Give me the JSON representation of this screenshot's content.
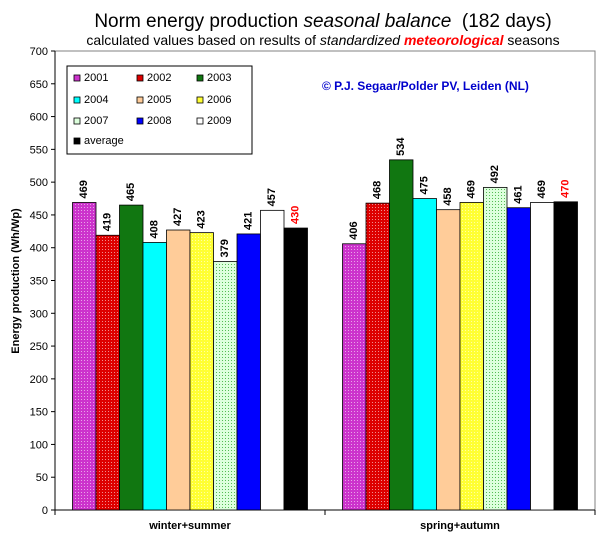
{
  "title": {
    "prefix": "Norm energy production ",
    "emph": "seasonal balance",
    "suffix": "  (182 days)"
  },
  "subtitle": {
    "part1": "calculated values based on results of ",
    "part2": "standardized",
    "part3": "meteorological",
    "part4": " seasons",
    "highlight_color": "#ff0000"
  },
  "copyright": "© P.J. Segaar/Polder PV, Leiden (NL)",
  "chart_data": {
    "type": "bar",
    "categories": [
      "winter+summer",
      "spring+autumn"
    ],
    "ylabel": "Energy production (Wh/Wp)",
    "xlabel": "",
    "ylim": [
      0,
      700
    ],
    "yticks": [
      0,
      50,
      100,
      150,
      200,
      250,
      300,
      350,
      400,
      450,
      500,
      550,
      600,
      650,
      700
    ],
    "grid": false,
    "legend_position": "top-left",
    "series": [
      {
        "name": "2001",
        "values": [
          469,
          406
        ],
        "color": "#cc33cc",
        "pattern": "dots"
      },
      {
        "name": "2002",
        "values": [
          419,
          468
        ],
        "color": "#dd0000",
        "pattern": "dots"
      },
      {
        "name": "2003",
        "values": [
          465,
          534
        ],
        "color": "#117711",
        "pattern": "solid"
      },
      {
        "name": "2004",
        "values": [
          408,
          475
        ],
        "color": "#00ffff",
        "pattern": "solid"
      },
      {
        "name": "2005",
        "values": [
          427,
          458
        ],
        "color": "#ffcc99",
        "pattern": "solid"
      },
      {
        "name": "2006",
        "values": [
          423,
          469
        ],
        "color": "#ffff33",
        "pattern": "dots"
      },
      {
        "name": "2007",
        "values": [
          379,
          492
        ],
        "color": "#ddffdd",
        "pattern": "dots-green"
      },
      {
        "name": "2008",
        "values": [
          421,
          461
        ],
        "color": "#0000ff",
        "pattern": "solid"
      },
      {
        "name": "2009",
        "values": [
          457,
          469
        ],
        "color": "#ffffff",
        "pattern": "solid"
      },
      {
        "name": "average",
        "values": [
          430,
          470
        ],
        "color": "#000000",
        "pattern": "solid",
        "label_color": "#ff0000",
        "legend_text_color": "#ff0000"
      }
    ]
  }
}
